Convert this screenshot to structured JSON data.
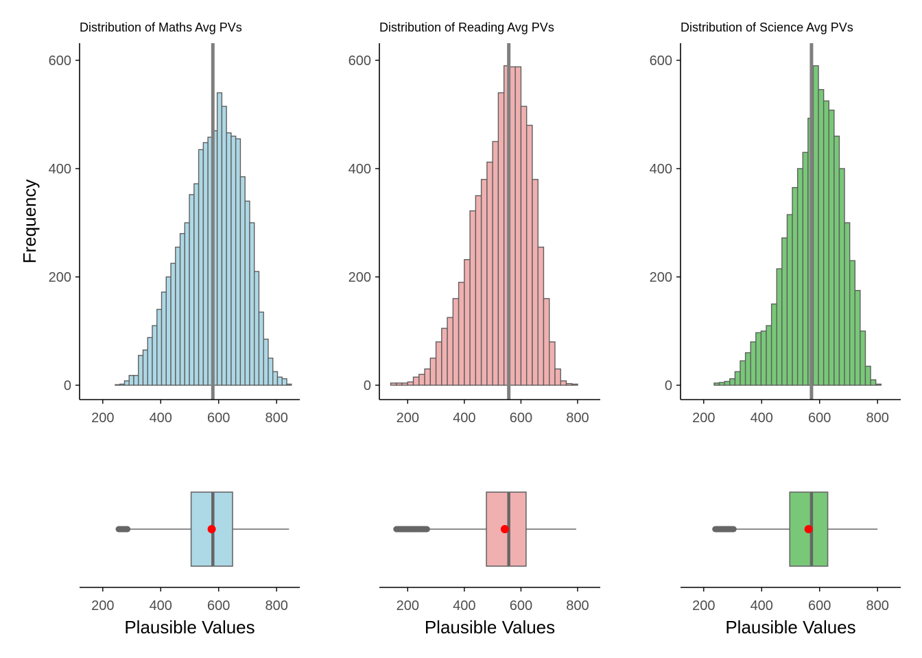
{
  "figure": {
    "y_axis_title": "Frequency",
    "x_axis_title": "Plausible Values"
  },
  "colors": {
    "bar_outline": "#5e5e5e",
    "mean_line": "#7f7f7f",
    "mean_point": "#ff0000",
    "axis": "#000000",
    "whisker": "#666666"
  },
  "chart_data": [
    {
      "type": "bar",
      "title": "Distribution of Maths Avg PVs",
      "fill": "#add8e6",
      "bin_width": 16,
      "xlim": [
        120,
        880
      ],
      "ylim": [
        0,
        630
      ],
      "x_ticks": [
        200,
        400,
        600,
        800
      ],
      "y_ticks": [
        0,
        200,
        400,
        600
      ],
      "bin_centers": [
        251,
        267,
        283,
        299,
        315,
        331,
        347,
        363,
        379,
        395,
        411,
        427,
        443,
        459,
        475,
        491,
        507,
        523,
        539,
        555,
        571,
        587,
        603,
        619,
        635,
        651,
        667,
        683,
        699,
        715,
        731,
        747,
        763,
        779,
        795,
        811,
        827,
        843
      ],
      "counts": [
        1,
        2,
        8,
        18,
        18,
        55,
        65,
        88,
        110,
        140,
        172,
        200,
        225,
        255,
        280,
        300,
        352,
        372,
        435,
        448,
        458,
        470,
        540,
        515,
        466,
        460,
        455,
        385,
        340,
        300,
        210,
        135,
        85,
        50,
        25,
        15,
        12,
        2
      ],
      "mean_line": 580
    },
    {
      "type": "bar",
      "title": "Distribution of Reading Avg PVs",
      "fill": "#f0b0b0",
      "bin_width": 20,
      "xlim": [
        100,
        880
      ],
      "ylim": [
        0,
        630
      ],
      "x_ticks": [
        200,
        400,
        600,
        800
      ],
      "y_ticks": [
        0,
        200,
        400,
        600
      ],
      "bin_centers": [
        150,
        170,
        190,
        210,
        230,
        250,
        270,
        290,
        310,
        330,
        350,
        370,
        390,
        410,
        430,
        450,
        470,
        490,
        510,
        530,
        550,
        570,
        590,
        610,
        630,
        650,
        670,
        690,
        710,
        730,
        750,
        770,
        790
      ],
      "counts": [
        4,
        4,
        4,
        6,
        15,
        20,
        30,
        50,
        80,
        105,
        125,
        160,
        190,
        232,
        322,
        350,
        380,
        412,
        450,
        540,
        590,
        588,
        588,
        515,
        480,
        380,
        255,
        160,
        80,
        30,
        8,
        3,
        2
      ],
      "mean_line": 557
    },
    {
      "type": "bar",
      "title": "Distribution of Science Avg PVs",
      "fill": "#78c878",
      "bin_width": 18,
      "xlim": [
        120,
        880
      ],
      "ylim": [
        0,
        630
      ],
      "x_ticks": [
        200,
        400,
        600,
        800
      ],
      "y_ticks": [
        0,
        200,
        400,
        600
      ],
      "bin_centers": [
        245,
        263,
        281,
        299,
        317,
        335,
        353,
        371,
        389,
        407,
        425,
        443,
        461,
        479,
        497,
        515,
        533,
        551,
        569,
        587,
        605,
        623,
        641,
        659,
        677,
        695,
        713,
        731,
        749,
        767,
        785,
        803
      ],
      "counts": [
        4,
        5,
        7,
        12,
        25,
        45,
        60,
        80,
        97,
        100,
        110,
        150,
        215,
        272,
        315,
        365,
        400,
        430,
        493,
        590,
        546,
        525,
        508,
        460,
        400,
        300,
        230,
        175,
        100,
        35,
        10,
        2
      ],
      "mean_line": 572
    }
  ],
  "boxplots": [
    {
      "subject": "Maths",
      "fill": "#add8e6",
      "q1": 505,
      "median": 580,
      "q3": 648,
      "whisker_low": 287,
      "whisker_high": 843,
      "mean": 576,
      "outliers_from": 255,
      "outliers_to": 287,
      "x_ticks": [
        200,
        400,
        600,
        800
      ]
    },
    {
      "subject": "Reading",
      "fill": "#f0b0b0",
      "q1": 478,
      "median": 557,
      "q3": 618,
      "whisker_low": 270,
      "whisker_high": 795,
      "mean": 543,
      "outliers_from": 160,
      "outliers_to": 268,
      "x_ticks": [
        200,
        400,
        600,
        800
      ]
    },
    {
      "subject": "Science",
      "fill": "#78c878",
      "q1": 497,
      "median": 572,
      "q3": 628,
      "whisker_low": 305,
      "whisker_high": 800,
      "mean": 562,
      "outliers_from": 240,
      "outliers_to": 303,
      "x_ticks": [
        200,
        400,
        600,
        800
      ]
    }
  ]
}
